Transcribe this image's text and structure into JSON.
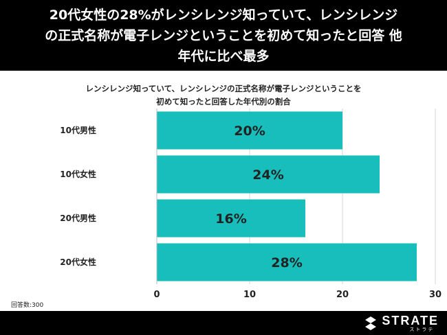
{
  "header": {
    "title_lines": [
      "20代女性の28%がレンシレンジ知っていて、レンシレンジ",
      "の正式名称が電子レンジということを初めて知ったと回答 他",
      "年代に比べ最多"
    ]
  },
  "chart_data": {
    "type": "bar",
    "orientation": "horizontal",
    "title_lines": [
      "レンシレンジ知っていて、レンシレンジの正式名称が電子レンジということを",
      "初めて知ったと回答した年代別の割合"
    ],
    "categories": [
      "10代男性",
      "10代女性",
      "20代男性",
      "20代女性"
    ],
    "values": [
      20,
      24,
      16,
      28
    ],
    "value_labels": [
      "20%",
      "24%",
      "16%",
      "28%"
    ],
    "xlim": [
      0,
      30
    ],
    "x_ticks": [
      0,
      10,
      20,
      30
    ],
    "grid": true,
    "bar_color": "#17BEBB",
    "xlabel": "",
    "ylabel": ""
  },
  "footnote": "回答数:300",
  "brand": {
    "name": "STRATE",
    "sub": "ストラテ"
  },
  "colors": {
    "banner": "#000000",
    "bar": "#17BEBB"
  }
}
